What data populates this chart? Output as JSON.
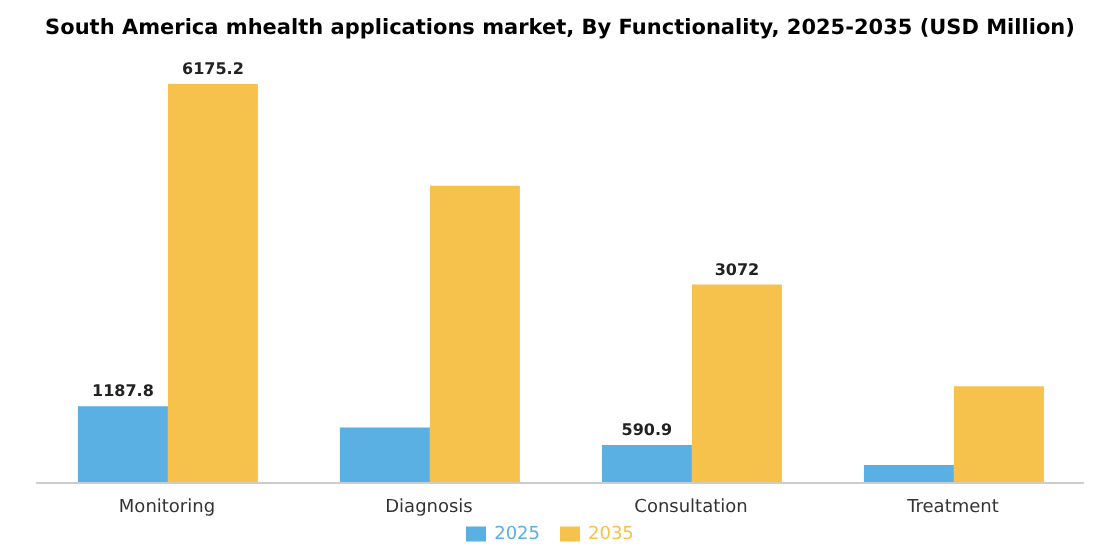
{
  "chart_data": {
    "type": "bar",
    "title": "South America mhealth applications market, By Functionality, 2025-2035 (USD Million)",
    "categories": [
      "Monitoring",
      "Diagnosis",
      "Consultation",
      "Treatment"
    ],
    "series": [
      {
        "name": "2025",
        "color": "#5aafe3",
        "values": [
          1187.8,
          860,
          590.9,
          280
        ],
        "value_labels": [
          "1187.8",
          null,
          "590.9",
          null
        ]
      },
      {
        "name": "2035",
        "color": "#f7c24b",
        "values": [
          6175.2,
          4600,
          3072,
          1500
        ],
        "value_labels": [
          "6175.2",
          null,
          "3072",
          null
        ]
      }
    ],
    "legend": "bottom",
    "grid": false
  }
}
